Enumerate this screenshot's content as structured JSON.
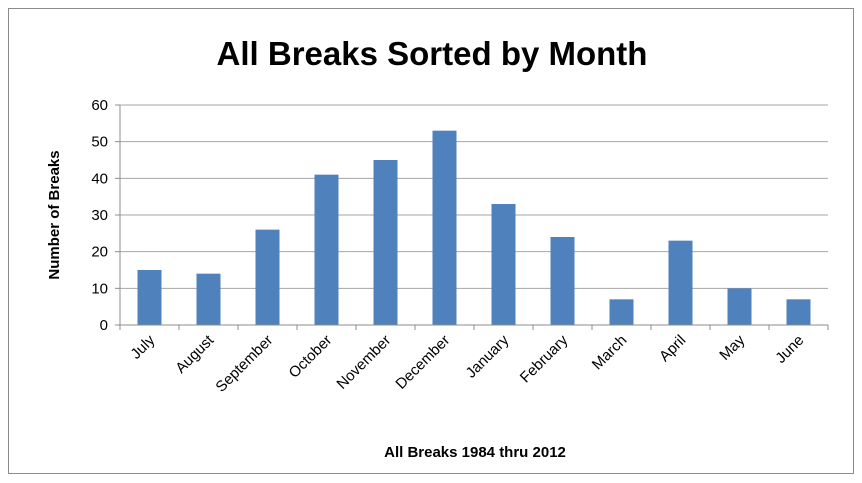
{
  "chart_data": {
    "type": "bar",
    "title": "All Breaks Sorted by Month",
    "xlabel": "All Breaks 1984 thru 2012",
    "ylabel": "Number of Breaks",
    "categories": [
      "July",
      "August",
      "September",
      "October",
      "November",
      "December",
      "January",
      "February",
      "March",
      "April",
      "May",
      "June"
    ],
    "values": [
      15,
      14,
      26,
      41,
      45,
      53,
      33,
      24,
      7,
      23,
      10,
      7
    ],
    "ylim": [
      0,
      60
    ],
    "yticks": [
      0,
      10,
      20,
      30,
      40,
      50,
      60
    ],
    "grid": true,
    "legend": "none",
    "bar_color": "#4f81bd",
    "grid_color": "#a6a6a6"
  }
}
